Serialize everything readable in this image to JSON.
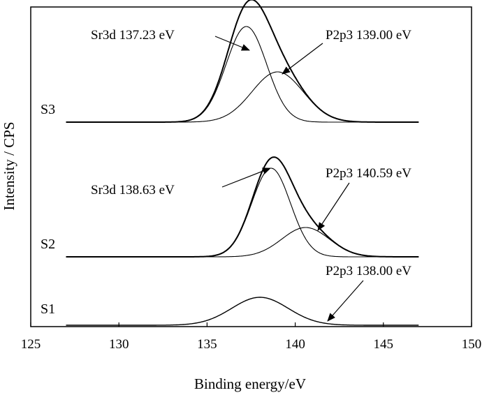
{
  "chart_data": {
    "type": "line",
    "title": "",
    "xlabel": "Binding energy/eV",
    "ylabel": "Intensity / CPS",
    "xlim": [
      125,
      150
    ],
    "xticks": [
      "125",
      "130",
      "135",
      "140",
      "145",
      "150"
    ],
    "xtick_values": [
      125,
      130,
      135,
      140,
      145,
      150
    ],
    "x_range": [
      127,
      147
    ],
    "grid": false,
    "legend": "none",
    "samples": [
      {
        "label": "S3",
        "baseline": 0.8,
        "peaks": [
          {
            "label": "Sr3d 137.23 eV",
            "center": 137.23,
            "height": 1.37,
            "sigma": 1.15
          },
          {
            "label": "P2p3 139.00 eV",
            "center": 139.0,
            "height": 0.72,
            "sigma": 1.45
          }
        ]
      },
      {
        "label": "S2",
        "baseline": 0.8,
        "peaks": [
          {
            "label": "Sr3d 138.63 eV",
            "center": 138.63,
            "height": 1.27,
            "sigma": 1.1
          },
          {
            "label": "P2p3 140.59 eV",
            "center": 140.59,
            "height": 0.42,
            "sigma": 1.35
          }
        ]
      },
      {
        "label": "S1",
        "baseline": 0.0,
        "peaks": [
          {
            "label": "P2p3 138.00 eV",
            "center": 138.0,
            "height": 0.4,
            "sigma": 1.6
          }
        ]
      }
    ]
  }
}
